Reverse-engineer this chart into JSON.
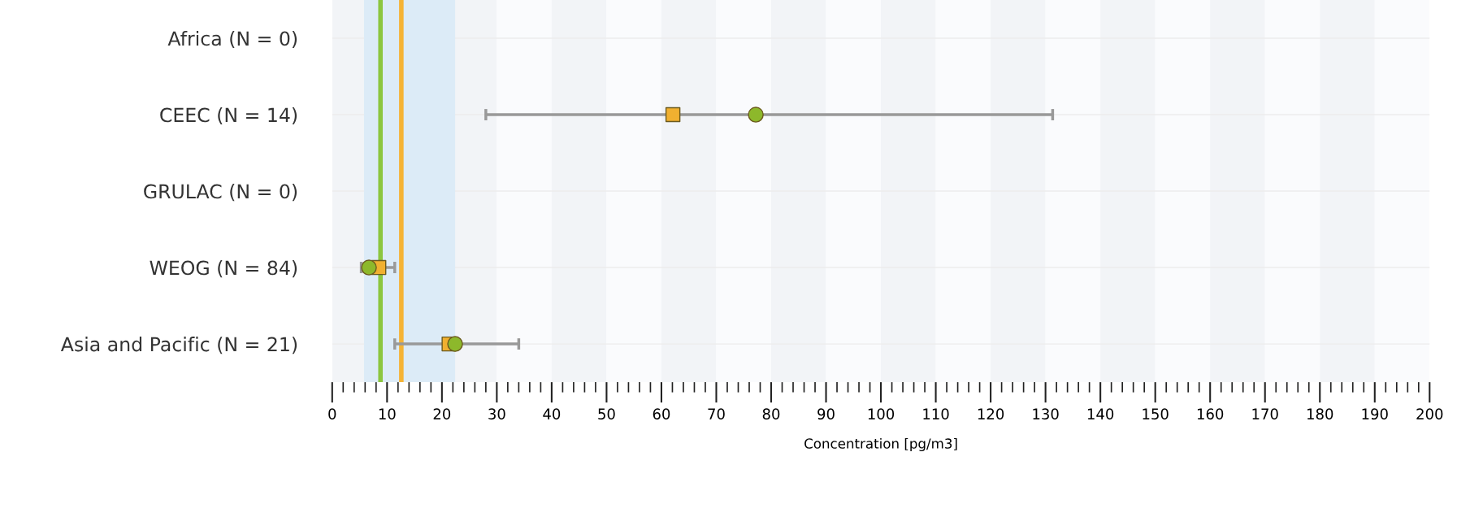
{
  "chart_data": {
    "type": "scatter",
    "orientation": "horizontal",
    "xlabel": "Concentration [pg/m3]",
    "categories": [
      "Africa (N = 0)",
      "CEEC (N = 14)",
      "GRULAC (N = 0)",
      "WEOG (N = 84)",
      "Asia and Pacific (N = 21)"
    ],
    "series": [
      {
        "color": "#f0b030",
        "marker": "square",
        "values": [
          null,
          62.1,
          null,
          8.5,
          21.3
        ],
        "errors": [
          null,
          [
            28.0,
            131.3
          ],
          null,
          [
            5.3,
            11.4
          ],
          [
            11.4,
            34.0
          ]
        ]
      },
      {
        "color": "#8db82b",
        "marker": "circle",
        "values": [
          null,
          77.2,
          null,
          6.7,
          22.4
        ]
      }
    ],
    "ref_lines": [
      {
        "axis": "x",
        "value": 8.8,
        "label": null,
        "color": "#8cc63f"
      },
      {
        "axis": "x",
        "value": 12.6,
        "label": null,
        "color": "#f5b335"
      }
    ],
    "bands": [
      {
        "axis": "x",
        "from": 5.8,
        "to": 22.4,
        "label": null,
        "color": "#dcebf7"
      }
    ],
    "xlim": [
      0,
      200
    ],
    "xticks": [
      0,
      10,
      20,
      30,
      40,
      50,
      60,
      70,
      80,
      90,
      100,
      110,
      120,
      130,
      140,
      150,
      160,
      170,
      180,
      190,
      200,
      {
        "value": 2,
        "label": null
      },
      {
        "value": 4,
        "label": null
      },
      {
        "value": 6,
        "label": null
      },
      {
        "value": 8,
        "label": null
      },
      {
        "value": 12,
        "label": null
      },
      {
        "value": 14,
        "label": null
      },
      {
        "value": 16,
        "label": null
      },
      {
        "value": 18,
        "label": null
      },
      {
        "value": 22,
        "label": null
      },
      {
        "value": 24,
        "label": null
      },
      {
        "value": 26,
        "label": null
      },
      {
        "value": 28,
        "label": null
      },
      {
        "value": 32,
        "label": null
      },
      {
        "value": 34,
        "label": null
      },
      {
        "value": 36,
        "label": null
      },
      {
        "value": 38,
        "label": null
      },
      {
        "value": 42,
        "label": null
      },
      {
        "value": 44,
        "label": null
      },
      {
        "value": 46,
        "label": null
      },
      {
        "value": 48,
        "label": null
      },
      {
        "value": 52,
        "label": null
      },
      {
        "value": 54,
        "label": null
      },
      {
        "value": 56,
        "label": null
      },
      {
        "value": 58,
        "label": null
      },
      {
        "value": 62,
        "label": null
      },
      {
        "value": 64,
        "label": null
      },
      {
        "value": 66,
        "label": null
      },
      {
        "value": 68,
        "label": null
      },
      {
        "value": 72,
        "label": null
      },
      {
        "value": 74,
        "label": null
      },
      {
        "value": 76,
        "label": null
      },
      {
        "value": 78,
        "label": null
      },
      {
        "value": 82,
        "label": null
      },
      {
        "value": 84,
        "label": null
      },
      {
        "value": 86,
        "label": null
      },
      {
        "value": 88,
        "label": null
      },
      {
        "value": 92,
        "label": null
      },
      {
        "value": 94,
        "label": null
      },
      {
        "value": 96,
        "label": null
      },
      {
        "value": 98,
        "label": null
      },
      {
        "value": 102,
        "label": null
      },
      {
        "value": 104,
        "label": null
      },
      {
        "value": 106,
        "label": null
      },
      {
        "value": 108,
        "label": null
      },
      {
        "value": 112,
        "label": null
      },
      {
        "value": 114,
        "label": null
      },
      {
        "value": 116,
        "label": null
      },
      {
        "value": 118,
        "label": null
      },
      {
        "value": 122,
        "label": null
      },
      {
        "value": 124,
        "label": null
      },
      {
        "value": 126,
        "label": null
      },
      {
        "value": 128,
        "label": null
      },
      {
        "value": 132,
        "label": null
      },
      {
        "value": 134,
        "label": null
      },
      {
        "value": 136,
        "label": null
      },
      {
        "value": 138,
        "label": null
      },
      {
        "value": 142,
        "label": null
      },
      {
        "value": 144,
        "label": null
      },
      {
        "value": 146,
        "label": null
      },
      {
        "value": 148,
        "label": null
      },
      {
        "value": 152,
        "label": null
      },
      {
        "value": 154,
        "label": null
      },
      {
        "value": 156,
        "label": null
      },
      {
        "value": 158,
        "label": null
      },
      {
        "value": 162,
        "label": null
      },
      {
        "value": 164,
        "label": null
      },
      {
        "value": 166,
        "label": null
      },
      {
        "value": 168,
        "label": null
      },
      {
        "value": 172,
        "label": null
      },
      {
        "value": 174,
        "label": null
      },
      {
        "value": 176,
        "label": null
      },
      {
        "value": 178,
        "label": null
      },
      {
        "value": 182,
        "label": null
      },
      {
        "value": 184,
        "label": null
      },
      {
        "value": 186,
        "label": null
      },
      {
        "value": 188,
        "label": null
      },
      {
        "value": 192,
        "label": null
      },
      {
        "value": 194,
        "label": null
      },
      {
        "value": 196,
        "label": null
      },
      {
        "value": 198,
        "label": null
      }
    ],
    "grid": true
  }
}
